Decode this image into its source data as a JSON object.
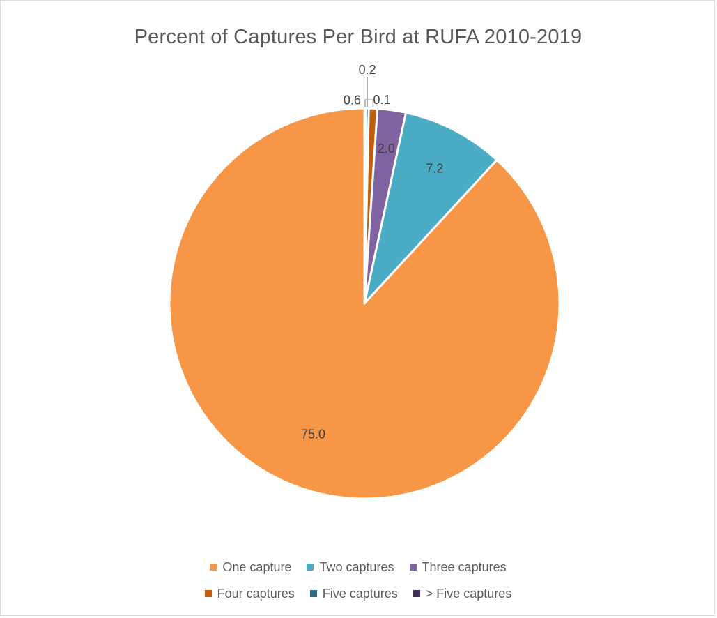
{
  "chart_data": {
    "type": "pie",
    "title": "Percent of Captures Per Bird at RUFA 2010-2019",
    "categories": [
      "One capture",
      "Two captures",
      "Three captures",
      "Four captures",
      "Five captures",
      "> Five captures"
    ],
    "values": [
      75.0,
      7.2,
      2.0,
      0.6,
      0.2,
      0.1
    ],
    "data_labels": [
      "75.0",
      "7.2",
      "2.0",
      "0.6",
      "0.2",
      "0.1"
    ],
    "colors": [
      "#f79646",
      "#4bacc6",
      "#8064a2",
      "#c0600e",
      "#2b6b7f",
      "#3f2e5a"
    ],
    "legend_position": "bottom"
  }
}
